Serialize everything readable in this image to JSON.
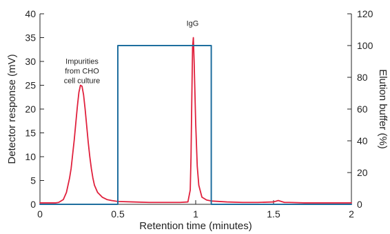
{
  "chart_data": {
    "type": "line",
    "title": "",
    "xlabel": "Retention time (minutes)",
    "ylabel": "Detector response (mV)",
    "y2label": "Elution buffer (%)",
    "xlim": [
      0,
      2
    ],
    "ylim": [
      0,
      40
    ],
    "y2lim": [
      0,
      120
    ],
    "x_ticks": [
      0,
      0.5,
      1,
      1.5,
      2
    ],
    "x_tick_labels": [
      "0",
      "0.5",
      "1",
      "1.5",
      "2"
    ],
    "y_ticks": [
      0,
      5,
      10,
      15,
      20,
      25,
      30,
      35,
      40
    ],
    "y_tick_labels": [
      "0",
      "5",
      "10",
      "15",
      "20",
      "25",
      "30",
      "35",
      "40"
    ],
    "y2_ticks": [
      0,
      20,
      40,
      60,
      80,
      100,
      120
    ],
    "y2_tick_labels": [
      "0",
      "20",
      "40",
      "60",
      "80",
      "100",
      "120"
    ],
    "grid": false,
    "legend": "none",
    "annotations": [
      {
        "lines": [
          "Impurities",
          "from CHO",
          "cell culture"
        ],
        "x": 0.27,
        "y": 29.5
      },
      {
        "lines": [
          "IgG"
        ],
        "x": 0.98,
        "y": 37.5
      }
    ],
    "series": [
      {
        "axis": "left",
        "color": "#e0203c",
        "x": [
          0,
          0.05,
          0.1,
          0.12,
          0.15,
          0.17,
          0.19,
          0.2,
          0.21,
          0.22,
          0.23,
          0.24,
          0.25,
          0.26,
          0.27,
          0.28,
          0.29,
          0.3,
          0.31,
          0.32,
          0.33,
          0.34,
          0.35,
          0.37,
          0.4,
          0.43,
          0.46,
          0.5,
          0.6,
          0.7,
          0.8,
          0.9,
          0.95,
          0.965,
          0.97,
          0.975,
          0.98,
          0.985,
          0.99,
          1.0,
          1.01,
          1.02,
          1.04,
          1.07,
          1.1,
          1.2,
          1.3,
          1.4,
          1.5,
          1.53,
          1.55,
          1.57,
          1.6,
          1.7,
          1.8,
          1.9,
          2.0
        ],
        "values": [
          0.3,
          0.3,
          0.3,
          0.4,
          1.0,
          2.5,
          5.5,
          7.5,
          10.5,
          13.5,
          17.0,
          20.5,
          23.5,
          25.0,
          24.8,
          23.0,
          20.0,
          16.5,
          13.0,
          10.0,
          7.5,
          5.5,
          4.0,
          2.5,
          1.5,
          1.0,
          0.8,
          0.6,
          0.5,
          0.4,
          0.4,
          0.4,
          0.5,
          3.0,
          10.0,
          22.0,
          33.0,
          35.0,
          30.0,
          17.0,
          8.0,
          4.0,
          1.5,
          0.9,
          0.7,
          0.5,
          0.4,
          0.4,
          0.5,
          0.8,
          0.6,
          0.4,
          0.4,
          0.3,
          0.3,
          0.3,
          0.3
        ]
      },
      {
        "axis": "right",
        "color": "#1e6e9e",
        "x": [
          0,
          0.5,
          0.5,
          1.1,
          1.1,
          2.0
        ],
        "values": [
          0,
          0,
          100,
          100,
          0,
          0
        ]
      }
    ]
  }
}
